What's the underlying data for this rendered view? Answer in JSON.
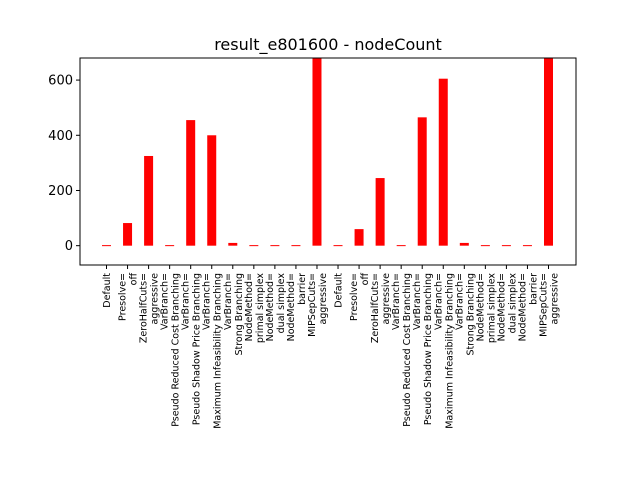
{
  "chart_data": {
    "type": "bar",
    "title": "result_e801600 - nodeCount",
    "xlabel": "",
    "ylabel": "",
    "ylim": [
      -70,
      680
    ],
    "yticks": [
      0,
      200,
      400,
      600
    ],
    "grid": false,
    "bar_color": "#ff0000",
    "categories": [
      "Default",
      "Presolve=\noff",
      "ZeroHalfCuts=\naggressive",
      "VarBranch=\nPseudo Reduced Cost Branching",
      "VarBranch=\nPseudo Shadow Price Branching",
      "VarBranch=\nMaximum Infeasibility Branching",
      "VarBranch=\nStrong Branching",
      "NodeMethod=\nprimal simplex",
      "NodeMethod=\ndual simplex",
      "NodeMethod=\nbarrier",
      "MIPSepCuts=\naggressive",
      "Default",
      "Presolve=\noff",
      "ZeroHalfCuts=\naggressive",
      "VarBranch=\nPseudo Reduced Cost Branching",
      "VarBranch=\nPseudo Shadow Price Branching",
      "VarBranch=\nMaximum Infeasibility Branching",
      "VarBranch=\nStrong Branching",
      "NodeMethod=\nprimal simplex",
      "NodeMethod=\ndual simplex",
      "NodeMethod=\nbarrier",
      "MIPSepCuts=\naggressive"
    ],
    "values": [
      2,
      82,
      325,
      2,
      455,
      400,
      10,
      2,
      2,
      2,
      680,
      2,
      60,
      245,
      2,
      465,
      605,
      10,
      2,
      2,
      2,
      680
    ]
  }
}
